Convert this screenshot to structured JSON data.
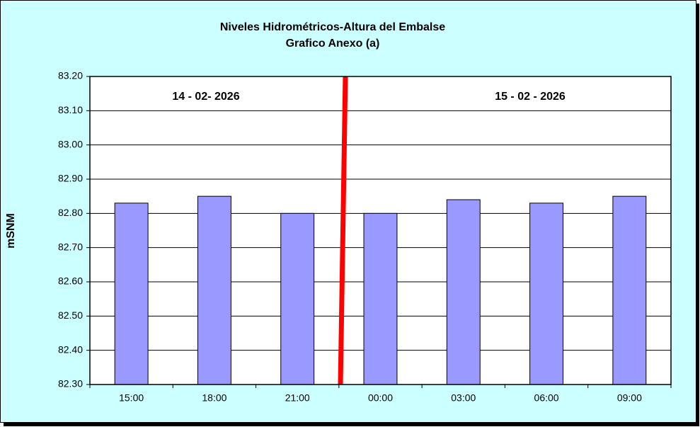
{
  "chart_data": {
    "type": "bar",
    "title": "Niveles Hidrométricos-Altura del Embalse",
    "subtitle": "Grafico Anexo (a)",
    "y_label": "mSNM",
    "annotations": [
      "14 - 02- 2026",
      "15 - 02 - 2026"
    ],
    "categories": [
      "15:00",
      "18:00",
      "21:00",
      "00:00",
      "03:00",
      "06:00",
      "09:00"
    ],
    "values": [
      82.83,
      82.85,
      82.8,
      82.8,
      82.84,
      82.83,
      82.85
    ],
    "color": "#9999ff",
    "ylim": [
      82.3,
      83.2
    ],
    "yticks": [
      {
        "value": 82.3,
        "label": "82.30"
      },
      {
        "value": 82.4,
        "label": "82.40"
      },
      {
        "value": 82.5,
        "label": "82.50"
      },
      {
        "value": 82.6,
        "label": "82.60"
      },
      {
        "value": 82.7,
        "label": "82.70"
      },
      {
        "value": 82.8,
        "label": "82.80"
      },
      {
        "value": 82.9,
        "label": "82.90"
      },
      {
        "value": 83.0,
        "label": "83.00"
      },
      {
        "value": 83.1,
        "label": "83.10"
      },
      {
        "value": 83.2,
        "label": "83.20"
      }
    ],
    "grid": true
  }
}
